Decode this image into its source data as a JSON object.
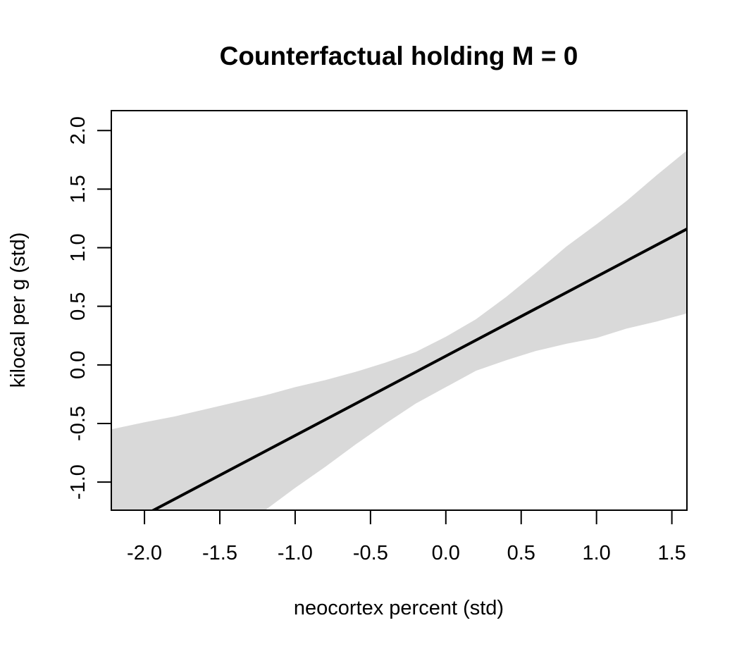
{
  "chart_data": {
    "type": "line",
    "title": "Counterfactual holding M = 0",
    "xlabel": "neocortex percent (std)",
    "ylabel": "kilocal per g (std)",
    "xlim": [
      -2.22,
      1.6
    ],
    "ylim": [
      -1.24,
      2.17
    ],
    "x_ticks": [
      -2.0,
      -1.5,
      -1.0,
      -0.5,
      0.0,
      0.5,
      1.0,
      1.5
    ],
    "x_tick_labels": [
      "-2.0",
      "-1.5",
      "-1.0",
      "-0.5",
      "0.0",
      "0.5",
      "1.0",
      "1.5"
    ],
    "y_ticks": [
      -1.0,
      -0.5,
      0.0,
      0.5,
      1.0,
      1.5,
      2.0
    ],
    "y_tick_labels": [
      "-1.0",
      "-0.5",
      "0.0",
      "0.5",
      "1.0",
      "1.5",
      "2.0"
    ],
    "grid": false,
    "series": [
      {
        "kind": "mean_line",
        "color": "#000000",
        "x": [
          -2.22,
          1.6
        ],
        "y": [
          -1.43,
          1.16
        ]
      }
    ],
    "interval": {
      "kind": "shaded_band",
      "color": "#d9d9d9",
      "x": [
        -2.22,
        -2.0,
        -1.8,
        -1.6,
        -1.4,
        -1.2,
        -1.0,
        -0.8,
        -0.6,
        -0.4,
        -0.2,
        0.0,
        0.2,
        0.4,
        0.6,
        0.8,
        1.0,
        1.2,
        1.4,
        1.6
      ],
      "upper": [
        -0.55,
        -0.49,
        -0.44,
        -0.38,
        -0.32,
        -0.26,
        -0.19,
        -0.13,
        -0.06,
        0.02,
        0.11,
        0.24,
        0.39,
        0.58,
        0.79,
        1.01,
        1.2,
        1.4,
        1.62,
        1.83
      ],
      "lower": [
        -1.98,
        -1.81,
        -1.63,
        -1.48,
        -1.36,
        -1.24,
        -1.05,
        -0.87,
        -0.68,
        -0.5,
        -0.33,
        -0.19,
        -0.05,
        0.04,
        0.12,
        0.18,
        0.23,
        0.31,
        0.37,
        0.44
      ]
    }
  }
}
